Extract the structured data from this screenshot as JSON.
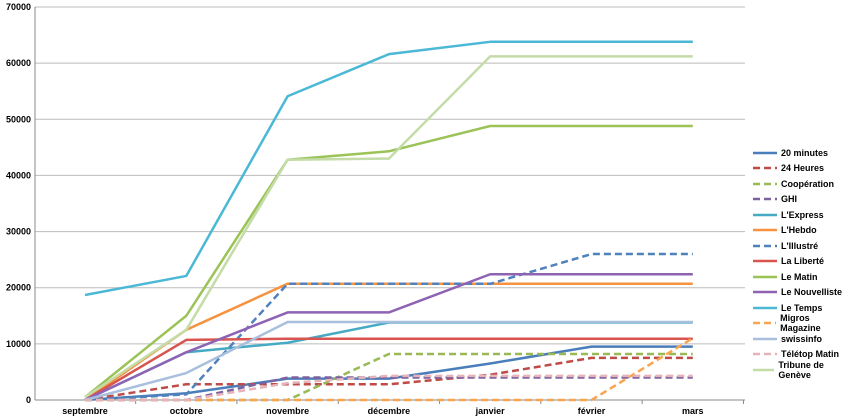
{
  "chart_data": {
    "type": "line",
    "title": "",
    "xlabel": "",
    "ylabel": "",
    "categories": [
      "septembre",
      "octobre",
      "novembre",
      "décembre",
      "janvier",
      "février",
      "mars"
    ],
    "ylim": [
      0,
      70000
    ],
    "yticks": [
      "0",
      "10000",
      "20000",
      "30000",
      "40000",
      "50000",
      "60000",
      "70000"
    ],
    "grid": true,
    "legend_position": "right",
    "series": [
      {
        "name": "20 minutes",
        "color": "#4a7ebb",
        "dashed": false,
        "values": [
          0,
          1200,
          3800,
          3800,
          6500,
          9500,
          9500
        ]
      },
      {
        "name": "24 Heures",
        "color": "#be4b48",
        "dashed": true,
        "values": [
          0,
          2800,
          2800,
          2800,
          4500,
          7500,
          7500
        ]
      },
      {
        "name": "Coopération",
        "color": "#98b954",
        "dashed": true,
        "values": [
          0,
          0,
          0,
          8200,
          8200,
          8200,
          8200
        ]
      },
      {
        "name": "GHI",
        "color": "#7d60a0",
        "dashed": true,
        "values": [
          0,
          0,
          4000,
          4000,
          4000,
          4000,
          4000
        ]
      },
      {
        "name": "L'Express",
        "color": "#46aac5",
        "dashed": false,
        "values": [
          0,
          8500,
          10200,
          13800,
          13800,
          13800,
          13800
        ]
      },
      {
        "name": "L'Hebdo",
        "color": "#f69240",
        "dashed": false,
        "values": [
          0,
          12500,
          20700,
          20700,
          20700,
          20700,
          20700
        ]
      },
      {
        "name": "L'Illustré",
        "color": "#4f81bd",
        "dashed": true,
        "values": [
          0,
          1000,
          20700,
          20700,
          20700,
          26000,
          26000
        ]
      },
      {
        "name": "La Liberté",
        "color": "#d9534f",
        "dashed": false,
        "values": [
          0,
          10700,
          10900,
          10900,
          10900,
          10900,
          10900
        ]
      },
      {
        "name": "Le Matin",
        "color": "#9bc356",
        "dashed": false,
        "values": [
          500,
          15000,
          42800,
          44300,
          48800,
          48800,
          48800
        ]
      },
      {
        "name": "Le Nouvelliste",
        "color": "#8e63b4",
        "dashed": false,
        "values": [
          0,
          8500,
          15600,
          15600,
          22400,
          22400,
          22400
        ]
      },
      {
        "name": "Le Temps",
        "color": "#4bb8d6",
        "dashed": false,
        "values": [
          18700,
          22100,
          54100,
          61600,
          63800,
          63800,
          63800
        ]
      },
      {
        "name": "Migros Magazine",
        "color": "#f9a54f",
        "dashed": true,
        "values": [
          0,
          0,
          0,
          0,
          0,
          0,
          11000
        ]
      },
      {
        "name": "swissinfo",
        "color": "#a9bfde",
        "dashed": false,
        "values": [
          0,
          4800,
          13900,
          13900,
          13900,
          13900,
          13900
        ]
      },
      {
        "name": "Télétop Matin",
        "color": "#e6b3b9",
        "dashed": true,
        "values": [
          0,
          0,
          3000,
          4300,
          4300,
          4300,
          4300
        ]
      },
      {
        "name": "Tribune de Genève",
        "color": "#c4dca8",
        "dashed": false,
        "values": [
          500,
          12500,
          42800,
          43000,
          61200,
          61200,
          61200
        ]
      }
    ]
  }
}
